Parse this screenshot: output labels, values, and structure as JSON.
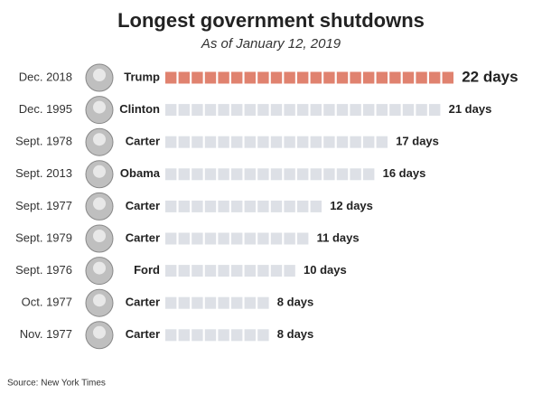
{
  "chart_data": {
    "type": "bar",
    "title": "Longest government shutdowns",
    "subtitle": "As of January 12, 2019",
    "categories": [
      "Dec. 2018",
      "Dec. 1995",
      "Sept. 1978",
      "Sept. 2013",
      "Sept. 1977",
      "Sept. 1979",
      "Sept. 1976",
      "Oct. 1977",
      "Nov. 1977"
    ],
    "presidents": [
      "Trump",
      "Clinton",
      "Carter",
      "Obama",
      "Carter",
      "Carter",
      "Ford",
      "Carter",
      "Carter"
    ],
    "values": [
      22,
      21,
      17,
      16,
      12,
      11,
      10,
      8,
      8
    ],
    "value_labels": [
      "22 days",
      "21 days",
      "17 days",
      "16 days",
      "12 days",
      "11 days",
      "10 days",
      "8 days",
      "8 days"
    ],
    "colors": [
      "#e0826f",
      "#dde0e6",
      "#dde0e6",
      "#dde0e6",
      "#dde0e6",
      "#dde0e6",
      "#dde0e6",
      "#dde0e6",
      "#dde0e6"
    ],
    "source": "Source: New York Times"
  }
}
